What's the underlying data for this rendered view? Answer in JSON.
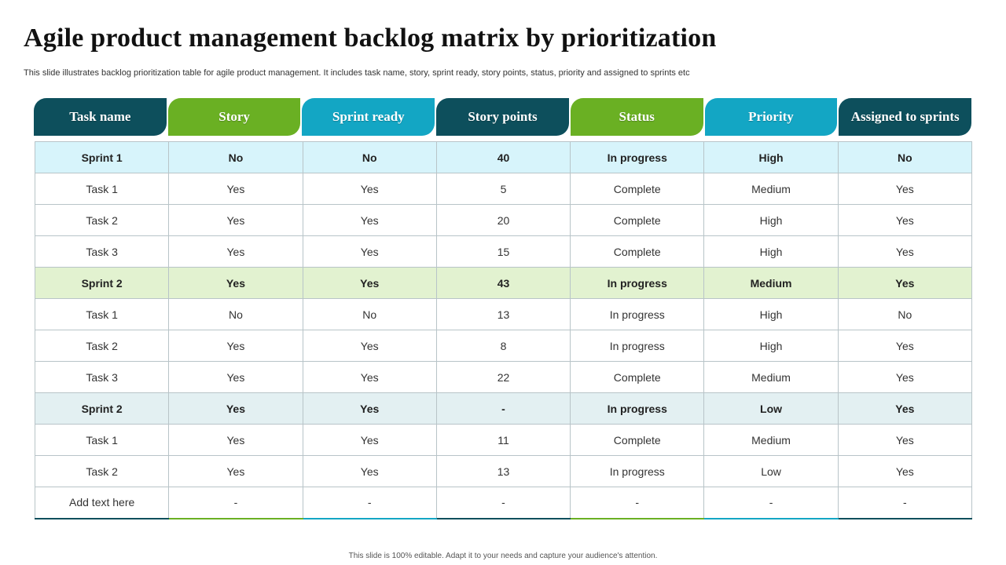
{
  "title": "Agile product management backlog matrix by prioritization",
  "subtitle": "This slide illustrates backlog prioritization table for agile product management. It includes task name, story, sprint ready, story points, status, priority and assigned to sprints etc",
  "colors": {
    "dark_teal": "#0d4f5c",
    "green": "#6ab023",
    "cyan": "#13a6c4",
    "sprint1_bg": "#d7f4fb",
    "sprint2_bg": "#e2f2d0",
    "sprint3_bg": "#e3f0f2"
  },
  "headers": [
    "Task name",
    "Story",
    "Sprint ready",
    "Story points",
    "Status",
    "Priority",
    "Assigned to sprints"
  ],
  "header_colors": [
    "#0d4f5c",
    "#6ab023",
    "#13a6c4",
    "#0d4f5c",
    "#6ab023",
    "#13a6c4",
    "#0d4f5c"
  ],
  "rows": [
    {
      "type": "sprint",
      "bg": "#d7f4fb",
      "cells": [
        "Sprint 1",
        "No",
        "No",
        "40",
        "In progress",
        "High",
        "No"
      ]
    },
    {
      "type": "task",
      "cells": [
        "Task 1",
        "Yes",
        "Yes",
        "5",
        "Complete",
        "Medium",
        "Yes"
      ]
    },
    {
      "type": "task",
      "cells": [
        "Task 2",
        "Yes",
        "Yes",
        "20",
        "Complete",
        "High",
        "Yes"
      ]
    },
    {
      "type": "task",
      "cells": [
        "Task 3",
        "Yes",
        "Yes",
        "15",
        "Complete",
        "High",
        "Yes"
      ]
    },
    {
      "type": "sprint",
      "bg": "#e2f2d0",
      "cells": [
        "Sprint 2",
        "Yes",
        "Yes",
        "43",
        "In progress",
        "Medium",
        "Yes"
      ]
    },
    {
      "type": "task",
      "cells": [
        "Task 1",
        "No",
        "No",
        "13",
        "In progress",
        "High",
        "No"
      ]
    },
    {
      "type": "task",
      "cells": [
        "Task 2",
        "Yes",
        "Yes",
        "8",
        "In progress",
        "High",
        "Yes"
      ]
    },
    {
      "type": "task",
      "cells": [
        "Task 3",
        "Yes",
        "Yes",
        "22",
        "Complete",
        "Medium",
        "Yes"
      ]
    },
    {
      "type": "sprint",
      "bg": "#e3f0f2",
      "cells": [
        "Sprint 2",
        "Yes",
        "Yes",
        "-",
        "In progress",
        "Low",
        "Yes"
      ]
    },
    {
      "type": "task",
      "cells": [
        "Task 1",
        "Yes",
        "Yes",
        "11",
        "Complete",
        "Medium",
        "Yes"
      ]
    },
    {
      "type": "task",
      "cells": [
        "Task 2",
        "Yes",
        "Yes",
        "13",
        "In progress",
        "Low",
        "Yes"
      ]
    },
    {
      "type": "task",
      "cells": [
        "Add text here",
        "-",
        "-",
        "-",
        "-",
        "-",
        "-"
      ]
    }
  ],
  "footer": "This slide is 100% editable.  Adapt it to your needs and capture your audience's attention."
}
